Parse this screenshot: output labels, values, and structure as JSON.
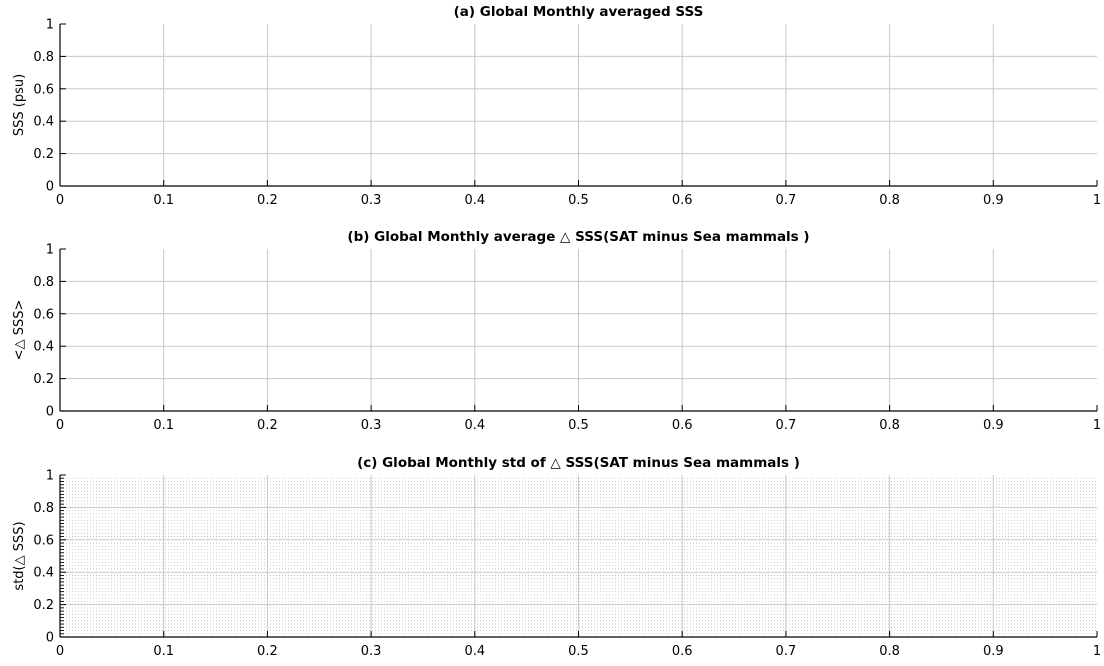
{
  "chart_data": [
    {
      "type": "line",
      "title": "(a) Global Monthly averaged SSS",
      "xlabel": "",
      "ylabel": "SSS (psu)",
      "xlim": [
        0,
        1
      ],
      "ylim": [
        0,
        1
      ],
      "xticks": [
        "0",
        "0.1",
        "0.2",
        "0.3",
        "0.4",
        "0.5",
        "0.6",
        "0.7",
        "0.8",
        "0.9",
        "1"
      ],
      "yticks": [
        "0",
        "0.2",
        "0.4",
        "0.6",
        "0.8",
        "1"
      ],
      "grid": true,
      "minor_grid": false,
      "series": []
    },
    {
      "type": "line",
      "title": "(b) Global Monthly average △ SSS(SAT minus Sea mammals )",
      "xlabel": "",
      "ylabel": "<△ SSS>",
      "xlim": [
        0,
        1
      ],
      "ylim": [
        0,
        1
      ],
      "xticks": [
        "0",
        "0.1",
        "0.2",
        "0.3",
        "0.4",
        "0.5",
        "0.6",
        "0.7",
        "0.8",
        "0.9",
        "1"
      ],
      "yticks": [
        "0",
        "0.2",
        "0.4",
        "0.6",
        "0.8",
        "1"
      ],
      "grid": true,
      "minor_grid": false,
      "series": []
    },
    {
      "type": "line",
      "title": "(c) Global Monthly std of △ SSS(SAT minus Sea mammals )",
      "xlabel": "",
      "ylabel": "std(△ SSS)",
      "xlim": [
        0,
        1
      ],
      "ylim": [
        0,
        1
      ],
      "xticks": [
        "0",
        "0.1",
        "0.2",
        "0.3",
        "0.4",
        "0.5",
        "0.6",
        "0.7",
        "0.8",
        "0.9",
        "1"
      ],
      "yticks": [
        "0",
        "0.2",
        "0.4",
        "0.6",
        "0.8",
        "1"
      ],
      "grid": true,
      "minor_grid": true,
      "series": []
    }
  ],
  "colors": {
    "axis": "#000000",
    "grid": "#c8c8c8",
    "minor_grid": "#bdbdbd",
    "background": "#ffffff"
  }
}
